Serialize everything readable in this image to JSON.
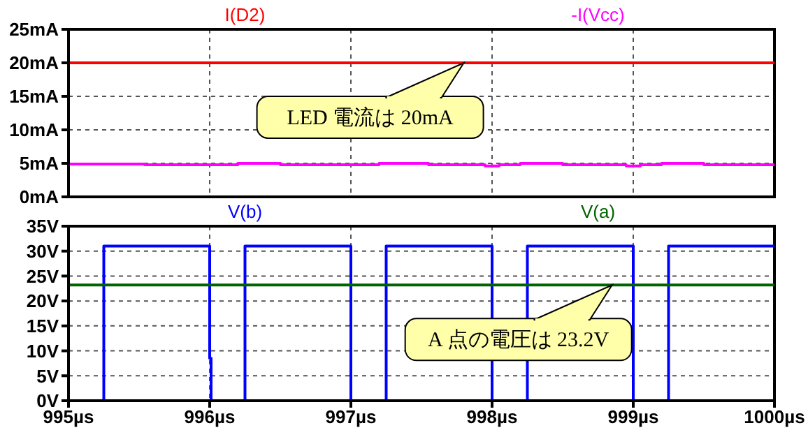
{
  "chart_data": [
    {
      "type": "line",
      "xlim": [
        995,
        1000
      ],
      "xticks": [
        {
          "value": 995,
          "label": null
        },
        {
          "value": 996,
          "label": null
        },
        {
          "value": 997,
          "label": null
        },
        {
          "value": 998,
          "label": null
        },
        {
          "value": 999,
          "label": null
        },
        {
          "value": 1000,
          "label": null
        }
      ],
      "ylim": [
        0,
        25
      ],
      "yticks": [
        {
          "value": 0,
          "label": "0mA"
        },
        {
          "value": 5,
          "label": "5mA"
        },
        {
          "value": 10,
          "label": "10mA"
        },
        {
          "value": 15,
          "label": "15mA"
        },
        {
          "value": 20,
          "label": "20mA"
        },
        {
          "value": 25,
          "label": "25mA"
        }
      ],
      "tick_labels": "y",
      "grid": true,
      "legend": "top",
      "marker": "none",
      "line_style": "solid",
      "series": [
        {
          "name": "I(D2)",
          "color": "#ff0000",
          "x": [
            995,
            1000
          ],
          "values": [
            20,
            20
          ]
        },
        {
          "name": "-I(Vcc)",
          "color": "#ff00ff",
          "x": [
            995,
            995.54,
            995.54,
            996.2,
            996.2,
            996.5,
            996.5,
            997.2,
            997.2,
            997.55,
            997.55,
            997.95,
            997.95,
            998.05,
            998.05,
            998.2,
            998.2,
            998.5,
            998.5,
            998.95,
            998.95,
            999.05,
            999.05,
            999.2,
            999.2,
            999.5,
            999.5,
            1000
          ],
          "values": [
            4.9,
            4.9,
            4.8,
            4.8,
            5,
            5,
            4.8,
            4.8,
            5,
            5,
            4.8,
            4.8,
            4.6,
            4.6,
            4.8,
            4.8,
            5,
            5,
            4.8,
            4.8,
            4.6,
            4.6,
            4.8,
            4.8,
            5,
            5,
            4.8,
            4.8
          ]
        }
      ],
      "annotations": [
        {
          "text": "LED 電流は 20mA",
          "x": 997.8,
          "y": 20
        }
      ]
    },
    {
      "type": "line",
      "xlim": [
        995,
        1000
      ],
      "xticks": [
        {
          "value": 995,
          "label": "995µs"
        },
        {
          "value": 996,
          "label": "996µs"
        },
        {
          "value": 997,
          "label": "997µs"
        },
        {
          "value": 998,
          "label": "998µs"
        },
        {
          "value": 999,
          "label": "999µs"
        },
        {
          "value": 1000,
          "label": "1000µs"
        }
      ],
      "ylim": [
        0,
        35
      ],
      "yticks": [
        {
          "value": 0,
          "label": "0V"
        },
        {
          "value": 5,
          "label": "5V"
        },
        {
          "value": 10,
          "label": "10V"
        },
        {
          "value": 15,
          "label": "15V"
        },
        {
          "value": 20,
          "label": "20V"
        },
        {
          "value": 25,
          "label": "25V"
        },
        {
          "value": 30,
          "label": "30V"
        },
        {
          "value": 35,
          "label": "35V"
        }
      ],
      "grid": true,
      "legend": "top",
      "marker": "none",
      "line_style": "solid",
      "series": [
        {
          "name": "V(b)",
          "color": "#0000ff",
          "x": [
            995.01,
            995.25,
            995.25,
            996,
            996,
            996.01,
            996.01,
            996.25,
            996.25,
            997,
            997,
            997.25,
            997.25,
            998,
            998,
            998.25,
            998.25,
            999,
            999,
            999.25,
            999.25,
            1000
          ],
          "values": [
            0,
            0,
            31,
            31,
            8.5,
            8.5,
            0,
            0,
            31,
            31,
            0,
            0,
            31,
            31,
            0,
            0,
            31,
            31,
            0,
            0,
            31,
            31
          ]
        },
        {
          "name": "V(a)",
          "color": "#006400",
          "x": [
            995,
            1000
          ],
          "values": [
            23.2,
            23.2
          ]
        }
      ],
      "annotations": [
        {
          "text": "A 点の電圧は 23.2V",
          "x": 998.85,
          "y": 23.2
        }
      ]
    }
  ]
}
